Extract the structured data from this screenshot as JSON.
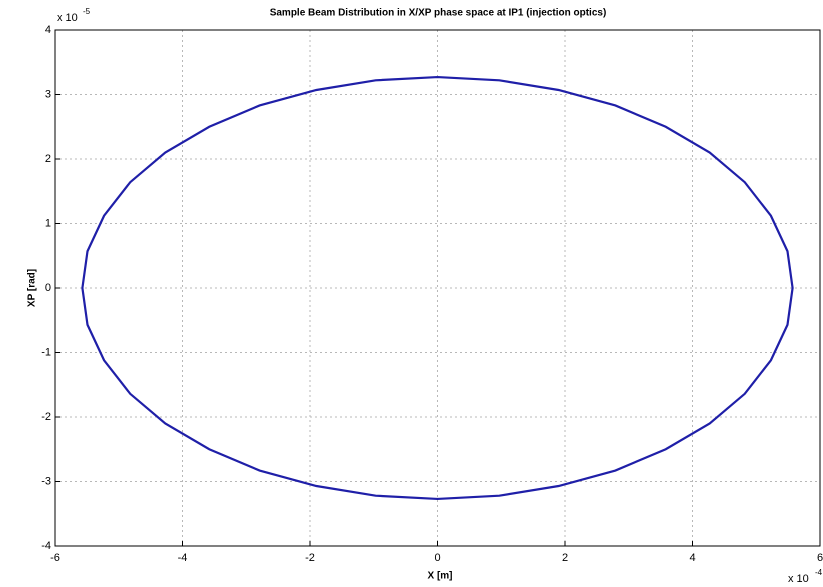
{
  "chart_data": {
    "type": "line",
    "title": "Sample Beam Distribution in X/XP phase space at IP1 (injection optics)",
    "x_label": "X [m]",
    "y_label": "XP [rad]",
    "x_multiplier": {
      "base": "x 10",
      "exponent": "-4"
    },
    "y_multiplier": {
      "base": "x 10",
      "exponent": "-5"
    },
    "xlim": [
      -6,
      6
    ],
    "xticks": [
      -6,
      -4,
      -2,
      0,
      2,
      4,
      6
    ],
    "ylim": [
      -4,
      4
    ],
    "yticks": [
      -4,
      -3,
      -2,
      -1,
      0,
      1,
      2,
      3,
      4
    ],
    "grid": true,
    "series": [
      {
        "color": "#1f1fa8",
        "x": [
          5.57,
          5.49,
          5.23,
          4.82,
          4.27,
          3.58,
          2.79,
          1.9,
          0.97,
          0,
          -0.97,
          -1.9,
          -2.79,
          -3.58,
          -4.27,
          -4.82,
          -5.23,
          -5.49,
          -5.57,
          -5.49,
          -5.23,
          -4.82,
          -4.27,
          -3.58,
          -2.79,
          -1.9,
          -0.97,
          0,
          0.97,
          1.9,
          2.79,
          3.58,
          4.27,
          4.82,
          5.23,
          5.49
        ],
        "values": [
          0,
          0.57,
          1.12,
          1.64,
          2.1,
          2.5,
          2.83,
          3.07,
          3.22,
          3.27,
          3.22,
          3.07,
          2.83,
          2.5,
          2.1,
          1.64,
          1.12,
          0.57,
          0,
          -0.57,
          -1.12,
          -1.64,
          -2.1,
          -2.5,
          -2.83,
          -3.07,
          -3.22,
          -3.27,
          -3.22,
          -3.07,
          -2.83,
          -2.5,
          -2.1,
          -1.64,
          -1.12,
          -0.57
        ]
      }
    ]
  }
}
